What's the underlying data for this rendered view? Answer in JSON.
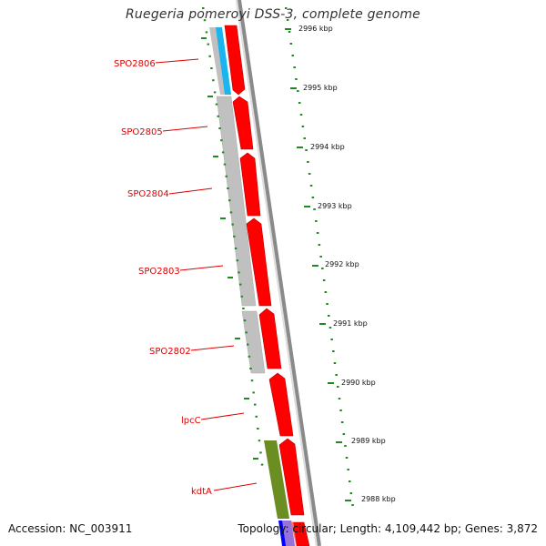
{
  "title": "Ruegeria pomeroyi DSS-3, complete genome",
  "accession": "Accession: NC_003911",
  "topology": "Topology: circular; Length: 4,109,442 bp; Genes: 3,872",
  "colors": {
    "background": "#ffffff",
    "forward_cds": "#ff0000",
    "cds_outline": "#c00000",
    "gene_bar": "#c0c0c0",
    "cyan_feature": "#1ab4ee",
    "green_feature": "#6b8e23",
    "blue_feature": "#0000ff",
    "backbone": "#8a8a8a",
    "tick": "#1f8a1f",
    "label": "#e00000"
  },
  "kbp_ticks": [
    {
      "text": "2996 kbp"
    },
    {
      "text": "2995 kbp"
    },
    {
      "text": "2994 kbp"
    },
    {
      "text": "2993 kbp"
    },
    {
      "text": "2992 kbp"
    },
    {
      "text": "2991 kbp"
    },
    {
      "text": "2990 kbp"
    },
    {
      "text": "2989 kbp"
    },
    {
      "text": "2988 kbp"
    }
  ],
  "gene_labels": [
    {
      "text": "SPO2806"
    },
    {
      "text": "SPO2805"
    },
    {
      "text": "SPO2804"
    },
    {
      "text": "SPO2803"
    },
    {
      "text": "SPO2802"
    },
    {
      "text": "lpcC"
    },
    {
      "text": "kdtA"
    }
  ]
}
